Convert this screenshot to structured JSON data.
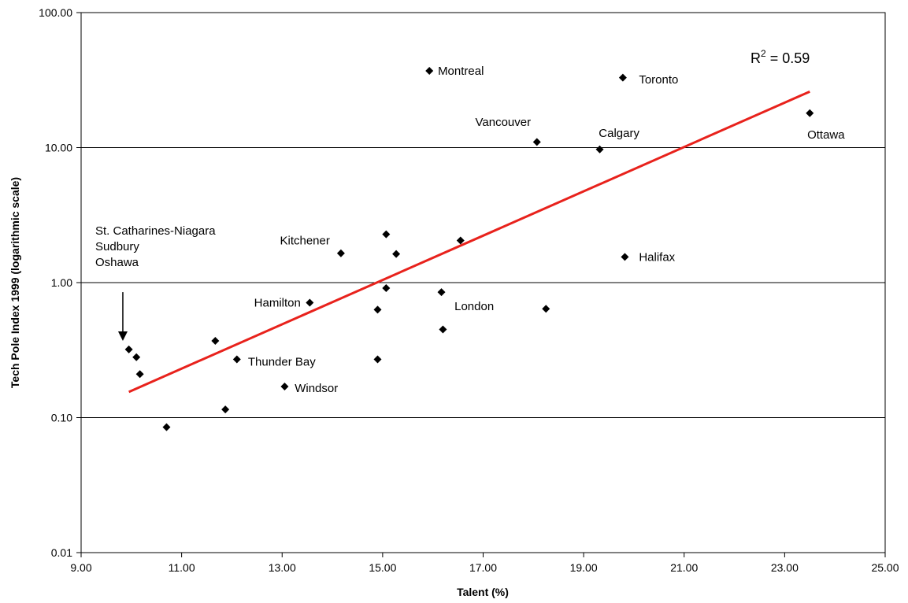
{
  "chart_data": {
    "type": "scatter",
    "xlabel": "Talent (%)",
    "ylabel": "Tech Pole Index 1999 (logarithmic scale)",
    "xlim": [
      9,
      25
    ],
    "ylim": [
      0.01,
      100
    ],
    "yscale": "log",
    "x_ticks": [
      "9.00",
      "11.00",
      "13.00",
      "15.00",
      "17.00",
      "19.00",
      "21.00",
      "23.00",
      "25.00"
    ],
    "y_ticks": [
      "0.01",
      "0.10",
      "1.00",
      "10.00",
      "100.00"
    ],
    "grid": "horizontal",
    "point_color": "#000000",
    "points": [
      {
        "x": 9.95,
        "y": 0.32
      },
      {
        "x": 10.1,
        "y": 0.28
      },
      {
        "x": 10.17,
        "y": 0.21
      },
      {
        "x": 10.7,
        "y": 0.085
      },
      {
        "x": 11.67,
        "y": 0.37
      },
      {
        "x": 11.87,
        "y": 0.115
      },
      {
        "x": 12.1,
        "y": 0.27
      },
      {
        "x": 13.05,
        "y": 0.17
      },
      {
        "x": 13.55,
        "y": 0.71
      },
      {
        "x": 14.17,
        "y": 1.65
      },
      {
        "x": 14.9,
        "y": 0.63
      },
      {
        "x": 14.9,
        "y": 0.27
      },
      {
        "x": 15.07,
        "y": 2.28
      },
      {
        "x": 15.07,
        "y": 0.91
      },
      {
        "x": 15.27,
        "y": 1.63
      },
      {
        "x": 15.93,
        "y": 37
      },
      {
        "x": 16.17,
        "y": 0.85
      },
      {
        "x": 16.2,
        "y": 0.45
      },
      {
        "x": 16.55,
        "y": 2.05
      },
      {
        "x": 18.07,
        "y": 11
      },
      {
        "x": 18.25,
        "y": 0.64
      },
      {
        "x": 19.32,
        "y": 9.7
      },
      {
        "x": 19.78,
        "y": 33
      },
      {
        "x": 19.82,
        "y": 1.55
      },
      {
        "x": 23.5,
        "y": 18
      }
    ],
    "point_labels": [
      {
        "text": "Montreal",
        "x": 16.1,
        "y": 37,
        "anchor": "start"
      },
      {
        "text": "Toronto",
        "x": 20.1,
        "y": 32,
        "anchor": "start"
      },
      {
        "text": "Vancouver",
        "x": 17.95,
        "y": 15.5,
        "anchor": "end"
      },
      {
        "text": "Calgary",
        "x": 19.3,
        "y": 12.8,
        "anchor": "start"
      },
      {
        "text": "Ottawa",
        "x": 23.45,
        "y": 12.5,
        "anchor": "start"
      },
      {
        "text": "Halifax",
        "x": 20.1,
        "y": 1.55,
        "anchor": "start"
      },
      {
        "text": "Kitchener",
        "x": 13.95,
        "y": 2.05,
        "anchor": "end"
      },
      {
        "text": "Hamilton",
        "x": 13.37,
        "y": 0.71,
        "anchor": "end"
      },
      {
        "text": "London",
        "x": 16.43,
        "y": 0.67,
        "anchor": "start"
      },
      {
        "text": "Thunder Bay",
        "x": 12.32,
        "y": 0.26,
        "anchor": "start"
      },
      {
        "text": "Windsor",
        "x": 13.25,
        "y": 0.165,
        "anchor": "start"
      }
    ],
    "annotation_lines": [
      "St. Catharines-Niagara",
      "Sudbury",
      "Oshawa"
    ],
    "annotation_arrow": {
      "x": 9.83,
      "y_from": 0.85,
      "y_to": 0.37
    },
    "trendline": {
      "x": [
        9.95,
        23.5
      ],
      "y": [
        0.155,
        26
      ],
      "color": "#e8221c",
      "label": "R",
      "label_sup": "2",
      "label_value": " = 0.59"
    }
  }
}
